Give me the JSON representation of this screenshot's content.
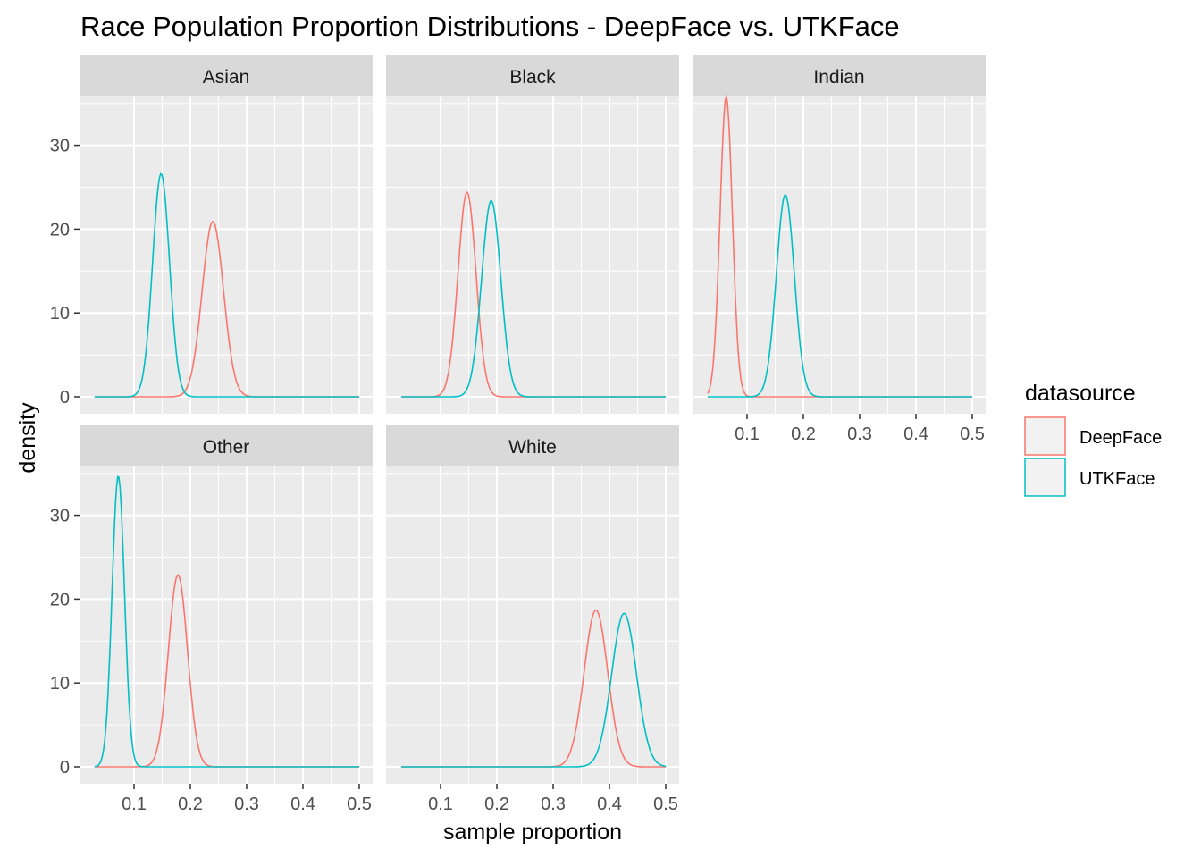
{
  "chart_data": {
    "type": "line",
    "title": "Race Population Proportion Distributions - DeepFace vs. UTKFace",
    "xlabel": "sample proportion",
    "ylabel": "density",
    "xlim": [
      0.03,
      0.5
    ],
    "ylim": [
      0,
      36
    ],
    "x_ticks": [
      "0.1",
      "0.2",
      "0.3",
      "0.4",
      "0.5"
    ],
    "x_tick_values": [
      0.1,
      0.2,
      0.3,
      0.4,
      0.5
    ],
    "y_ticks": [
      "0",
      "10",
      "20",
      "30"
    ],
    "y_tick_values": [
      0,
      10,
      20,
      30
    ],
    "grid": true,
    "facet_layout": "3 columns x 2 rows",
    "legend": {
      "title": "datasource",
      "position": "right",
      "entries": [
        {
          "name": "DeepFace",
          "color": "#F8766D"
        },
        {
          "name": "UTKFace",
          "color": "#00BFC4"
        }
      ]
    },
    "colors": {
      "DeepFace": "#F8766D",
      "UTKFace": "#00BFC4"
    },
    "panels": [
      {
        "name": "Asian",
        "series": [
          {
            "name": "DeepFace",
            "peak_x": 0.24,
            "peak_y": 20.9,
            "sd": 0.019
          },
          {
            "name": "UTKFace",
            "peak_x": 0.148,
            "peak_y": 26.6,
            "sd": 0.015
          }
        ]
      },
      {
        "name": "Black",
        "series": [
          {
            "name": "DeepFace",
            "peak_x": 0.147,
            "peak_y": 24.4,
            "sd": 0.016
          },
          {
            "name": "UTKFace",
            "peak_x": 0.19,
            "peak_y": 23.4,
            "sd": 0.017
          }
        ]
      },
      {
        "name": "Indian",
        "series": [
          {
            "name": "DeepFace",
            "peak_x": 0.063,
            "peak_y": 35.8,
            "sd": 0.011
          },
          {
            "name": "UTKFace",
            "peak_x": 0.168,
            "peak_y": 24.1,
            "sd": 0.016
          }
        ]
      },
      {
        "name": "Other",
        "series": [
          {
            "name": "DeepFace",
            "peak_x": 0.178,
            "peak_y": 22.9,
            "sd": 0.017
          },
          {
            "name": "UTKFace",
            "peak_x": 0.072,
            "peak_y": 34.7,
            "sd": 0.011
          }
        ]
      },
      {
        "name": "White",
        "series": [
          {
            "name": "DeepFace",
            "peak_x": 0.376,
            "peak_y": 18.7,
            "sd": 0.021
          },
          {
            "name": "UTKFace",
            "peak_x": 0.426,
            "peak_y": 18.3,
            "sd": 0.022
          }
        ]
      }
    ]
  }
}
